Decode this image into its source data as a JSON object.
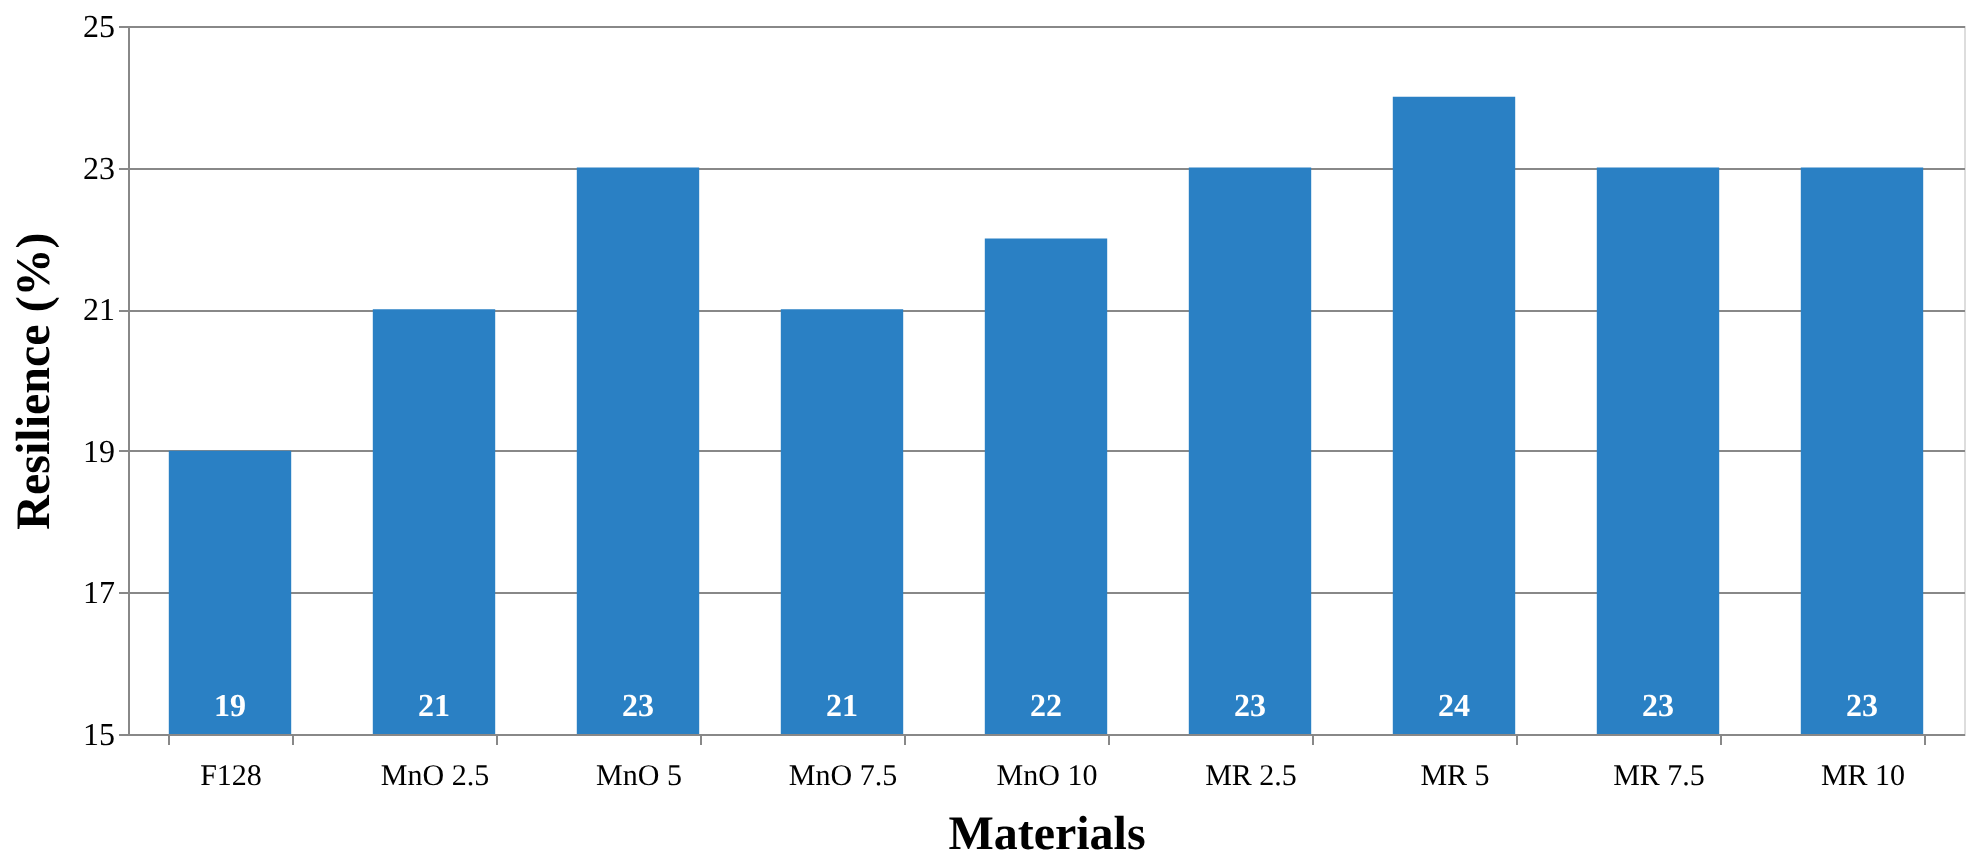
{
  "chart_data": {
    "type": "bar",
    "xlabel": "Materials",
    "ylabel": "Resilience  (%)",
    "categories": [
      "F128",
      "MnO 2.5",
      "MnO 5",
      "MnO 7.5",
      "MnO 10",
      "MR 2.5",
      "MR 5",
      "MR 7.5",
      "MR 10"
    ],
    "values": [
      19,
      21,
      23,
      21,
      22,
      23,
      24,
      23,
      23
    ],
    "color": "#2a80c4",
    "ylim": [
      15,
      25
    ],
    "yticks": [
      15,
      17,
      19,
      21,
      23,
      25
    ],
    "grid": "y",
    "data_labels": true
  }
}
